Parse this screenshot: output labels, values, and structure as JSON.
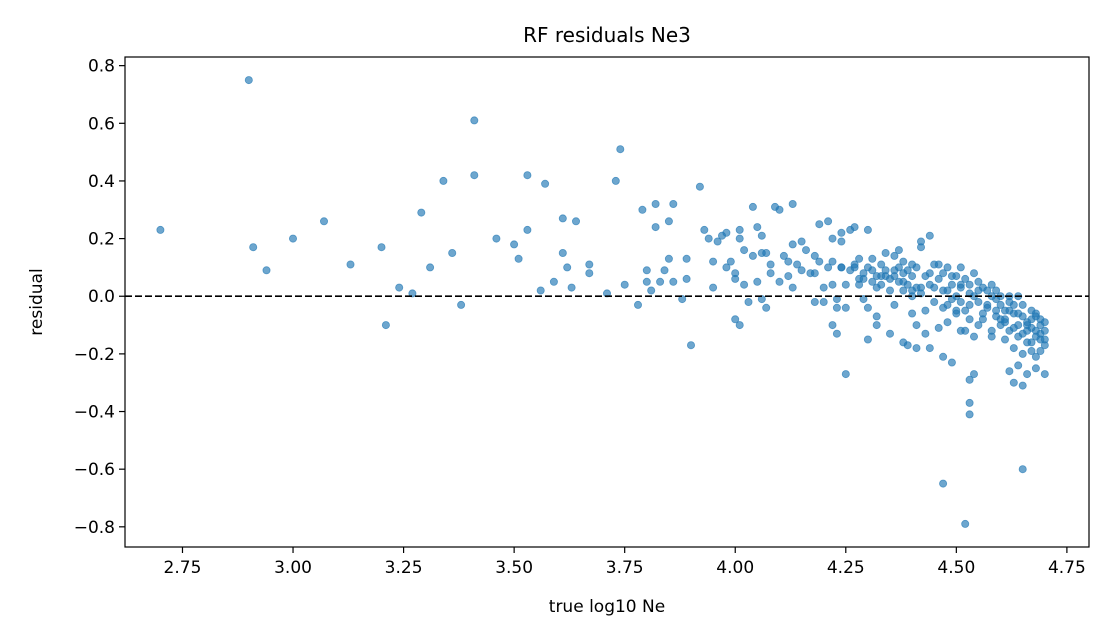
{
  "chart_data": {
    "type": "scatter",
    "title": "RF residuals Ne3",
    "xlabel": "true log10 Ne",
    "ylabel": "residual",
    "xlim": [
      2.62,
      4.8
    ],
    "ylim": [
      -0.87,
      0.83
    ],
    "xticks": [
      "2.75",
      "3.00",
      "3.25",
      "3.50",
      "3.75",
      "4.00",
      "4.25",
      "4.50",
      "4.75"
    ],
    "yticks": [
      "−0.8",
      "−0.6",
      "−0.4",
      "−0.2",
      "0.0",
      "0.2",
      "0.4",
      "0.6",
      "0.8"
    ],
    "reference_line": {
      "y": 0.0,
      "style": "dashed",
      "color": "#000000"
    },
    "grid": false,
    "point_color": "#1f77b4",
    "point_alpha": 0.65,
    "series": [
      {
        "points": [
          [
            2.7,
            0.23
          ],
          [
            2.9,
            0.75
          ],
          [
            2.91,
            0.17
          ],
          [
            2.94,
            0.09
          ],
          [
            3.0,
            0.2
          ],
          [
            3.07,
            0.26
          ],
          [
            3.13,
            0.11
          ],
          [
            3.2,
            0.17
          ],
          [
            3.21,
            -0.1
          ],
          [
            3.24,
            0.03
          ],
          [
            3.27,
            0.01
          ],
          [
            3.29,
            0.29
          ],
          [
            3.31,
            0.1
          ],
          [
            3.34,
            0.4
          ],
          [
            3.36,
            0.15
          ],
          [
            3.38,
            -0.03
          ],
          [
            3.41,
            0.42
          ],
          [
            3.41,
            0.61
          ],
          [
            3.46,
            0.2
          ],
          [
            3.5,
            0.18
          ],
          [
            3.51,
            0.13
          ],
          [
            3.53,
            0.23
          ],
          [
            3.53,
            0.42
          ],
          [
            3.56,
            0.02
          ],
          [
            3.57,
            0.39
          ],
          [
            3.59,
            0.05
          ],
          [
            3.61,
            0.15
          ],
          [
            3.61,
            0.27
          ],
          [
            3.62,
            0.1
          ],
          [
            3.63,
            0.03
          ],
          [
            3.64,
            0.26
          ],
          [
            3.67,
            0.11
          ],
          [
            3.67,
            0.08
          ],
          [
            3.71,
            0.01
          ],
          [
            3.73,
            0.4
          ],
          [
            3.74,
            0.51
          ],
          [
            3.75,
            0.04
          ],
          [
            3.78,
            -0.03
          ],
          [
            3.79,
            0.3
          ],
          [
            3.8,
            0.05
          ],
          [
            3.8,
            0.09
          ],
          [
            3.81,
            0.02
          ],
          [
            3.82,
            0.24
          ],
          [
            3.82,
            0.32
          ],
          [
            3.83,
            0.05
          ],
          [
            3.84,
            0.09
          ],
          [
            3.85,
            0.26
          ],
          [
            3.85,
            0.13
          ],
          [
            3.86,
            0.32
          ],
          [
            3.86,
            0.05
          ],
          [
            3.88,
            -0.01
          ],
          [
            3.89,
            0.13
          ],
          [
            3.89,
            0.06
          ],
          [
            3.9,
            -0.17
          ],
          [
            3.92,
            0.38
          ],
          [
            3.93,
            0.23
          ],
          [
            3.94,
            0.2
          ],
          [
            3.95,
            0.12
          ],
          [
            3.95,
            0.03
          ],
          [
            3.96,
            0.19
          ],
          [
            3.97,
            0.21
          ],
          [
            3.98,
            0.22
          ],
          [
            3.98,
            0.1
          ],
          [
            3.99,
            0.12
          ],
          [
            4.0,
            0.06
          ],
          [
            4.0,
            0.08
          ],
          [
            4.0,
            -0.08
          ],
          [
            4.01,
            0.2
          ],
          [
            4.01,
            0.23
          ],
          [
            4.01,
            -0.1
          ],
          [
            4.02,
            0.04
          ],
          [
            4.02,
            0.16
          ],
          [
            4.03,
            -0.02
          ],
          [
            4.04,
            0.14
          ],
          [
            4.04,
            0.31
          ],
          [
            4.05,
            0.05
          ],
          [
            4.05,
            0.24
          ],
          [
            4.06,
            0.15
          ],
          [
            4.06,
            -0.01
          ],
          [
            4.06,
            0.21
          ],
          [
            4.07,
            0.15
          ],
          [
            4.07,
            -0.04
          ],
          [
            4.08,
            0.08
          ],
          [
            4.08,
            0.11
          ],
          [
            4.09,
            0.31
          ],
          [
            4.1,
            0.3
          ],
          [
            4.1,
            0.05
          ],
          [
            4.11,
            0.14
          ],
          [
            4.12,
            0.12
          ],
          [
            4.12,
            0.07
          ],
          [
            4.13,
            0.18
          ],
          [
            4.13,
            0.32
          ],
          [
            4.13,
            0.03
          ],
          [
            4.14,
            0.11
          ],
          [
            4.15,
            0.19
          ],
          [
            4.15,
            0.09
          ],
          [
            4.16,
            0.16
          ],
          [
            4.17,
            0.08
          ],
          [
            4.18,
            0.14
          ],
          [
            4.18,
            -0.02
          ],
          [
            4.18,
            0.08
          ],
          [
            4.19,
            0.12
          ],
          [
            4.19,
            0.25
          ],
          [
            4.2,
            0.03
          ],
          [
            4.2,
            -0.02
          ],
          [
            4.21,
            0.26
          ],
          [
            4.21,
            0.1
          ],
          [
            4.22,
            0.04
          ],
          [
            4.22,
            0.12
          ],
          [
            4.22,
            -0.1
          ],
          [
            4.22,
            0.2
          ],
          [
            4.23,
            -0.01
          ],
          [
            4.23,
            -0.04
          ],
          [
            4.23,
            -0.13
          ],
          [
            4.24,
            0.1
          ],
          [
            4.24,
            0.19
          ],
          [
            4.24,
            0.22
          ],
          [
            4.25,
            0.04
          ],
          [
            4.25,
            -0.04
          ],
          [
            4.25,
            -0.27
          ],
          [
            4.26,
            0.09
          ],
          [
            4.26,
            0.23
          ],
          [
            4.27,
            0.1
          ],
          [
            4.27,
            0.24
          ],
          [
            4.28,
            0.06
          ],
          [
            4.28,
            0.13
          ],
          [
            4.28,
            0.04
          ],
          [
            4.29,
            -0.01
          ],
          [
            4.29,
            0.08
          ],
          [
            4.3,
            0.23
          ],
          [
            4.3,
            -0.04
          ],
          [
            4.3,
            0.1
          ],
          [
            4.3,
            -0.15
          ],
          [
            4.31,
            0.05
          ],
          [
            4.31,
            0.09
          ],
          [
            4.31,
            0.13
          ],
          [
            4.32,
            0.07
          ],
          [
            4.32,
            -0.07
          ],
          [
            4.32,
            -0.1
          ],
          [
            4.33,
            0.11
          ],
          [
            4.33,
            0.04
          ],
          [
            4.33,
            0.07
          ],
          [
            4.34,
            0.15
          ],
          [
            4.34,
            0.09
          ],
          [
            4.35,
            0.02
          ],
          [
            4.35,
            0.06
          ],
          [
            4.35,
            -0.13
          ],
          [
            4.36,
            0.07
          ],
          [
            4.36,
            0.14
          ],
          [
            4.36,
            -0.03
          ],
          [
            4.37,
            0.05
          ],
          [
            4.37,
            0.16
          ],
          [
            4.37,
            0.1
          ],
          [
            4.38,
            -0.16
          ],
          [
            4.38,
            0.02
          ],
          [
            4.38,
            0.08
          ],
          [
            4.38,
            0.12
          ],
          [
            4.39,
            0.04
          ],
          [
            4.39,
            0.09
          ],
          [
            4.39,
            -0.17
          ],
          [
            4.4,
            -0.06
          ],
          [
            4.4,
            0.07
          ],
          [
            4.4,
            0.0
          ],
          [
            4.4,
            0.02
          ],
          [
            4.41,
            0.03
          ],
          [
            4.41,
            0.1
          ],
          [
            4.41,
            -0.1
          ],
          [
            4.41,
            -0.18
          ],
          [
            4.42,
            0.01
          ],
          [
            4.42,
            0.17
          ],
          [
            4.42,
            0.19
          ],
          [
            4.43,
            -0.13
          ],
          [
            4.43,
            -0.05
          ],
          [
            4.43,
            0.07
          ],
          [
            4.44,
            0.08
          ],
          [
            4.44,
            0.21
          ],
          [
            4.44,
            -0.18
          ],
          [
            4.45,
            0.11
          ],
          [
            4.45,
            -0.02
          ],
          [
            4.45,
            0.03
          ],
          [
            4.46,
            0.11
          ],
          [
            4.46,
            -0.11
          ],
          [
            4.47,
            -0.04
          ],
          [
            4.47,
            0.02
          ],
          [
            4.47,
            0.08
          ],
          [
            4.48,
            -0.09
          ],
          [
            4.48,
            0.1
          ],
          [
            4.48,
            -0.03
          ],
          [
            4.49,
            0.04
          ],
          [
            4.49,
            -0.01
          ],
          [
            4.5,
            0.0
          ],
          [
            4.5,
            0.07
          ],
          [
            4.5,
            -0.06
          ],
          [
            4.51,
            -0.02
          ],
          [
            4.51,
            0.03
          ],
          [
            4.51,
            0.1
          ],
          [
            4.52,
            -0.12
          ],
          [
            4.52,
            0.06
          ],
          [
            4.52,
            -0.05
          ],
          [
            4.53,
            -0.08
          ],
          [
            4.53,
            0.01
          ],
          [
            4.53,
            0.04
          ],
          [
            4.54,
            -0.14
          ],
          [
            4.54,
            0.08
          ],
          [
            4.54,
            0.0
          ],
          [
            4.55,
            -0.02
          ],
          [
            4.55,
            0.05
          ],
          [
            4.55,
            -0.1
          ],
          [
            4.56,
            0.03
          ],
          [
            4.56,
            -0.06
          ],
          [
            4.57,
            0.02
          ],
          [
            4.57,
            -0.03
          ],
          [
            4.58,
            0.04
          ],
          [
            4.58,
            -0.12
          ],
          [
            4.58,
            0.0
          ],
          [
            4.59,
            -0.07
          ],
          [
            4.59,
            0.02
          ],
          [
            4.6,
            -0.03
          ],
          [
            4.6,
            -0.1
          ],
          [
            4.6,
            0.0
          ],
          [
            4.61,
            -0.05
          ],
          [
            4.61,
            -0.15
          ],
          [
            4.61,
            -0.08
          ],
          [
            4.62,
            -0.02
          ],
          [
            4.62,
            -0.12
          ],
          [
            4.62,
            0.0
          ],
          [
            4.63,
            -0.06
          ],
          [
            4.63,
            -0.18
          ],
          [
            4.63,
            -0.03
          ],
          [
            4.64,
            -0.1
          ],
          [
            4.64,
            -0.14
          ],
          [
            4.64,
            0.0
          ],
          [
            4.65,
            -0.07
          ],
          [
            4.65,
            -0.2
          ],
          [
            4.65,
            -0.03
          ],
          [
            4.66,
            -0.12
          ],
          [
            4.66,
            -0.16
          ],
          [
            4.66,
            -0.09
          ],
          [
            4.67,
            -0.05
          ],
          [
            4.67,
            -0.19
          ],
          [
            4.67,
            -0.11
          ],
          [
            4.68,
            -0.14
          ],
          [
            4.68,
            -0.07
          ],
          [
            4.68,
            -0.21
          ],
          [
            4.69,
            -0.1
          ],
          [
            4.69,
            -0.15
          ],
          [
            4.69,
            -0.08
          ],
          [
            4.7,
            -0.12
          ],
          [
            4.7,
            -0.17
          ],
          [
            4.7,
            -0.27
          ],
          [
            4.24,
            0.1
          ],
          [
            4.27,
            0.11
          ],
          [
            4.29,
            0.06
          ],
          [
            4.32,
            0.03
          ],
          [
            4.34,
            0.07
          ],
          [
            4.36,
            0.09
          ],
          [
            4.38,
            0.05
          ],
          [
            4.4,
            0.11
          ],
          [
            4.42,
            0.03
          ],
          [
            4.44,
            0.04
          ],
          [
            4.46,
            0.06
          ],
          [
            4.48,
            0.02
          ],
          [
            4.49,
            0.07
          ],
          [
            4.51,
            0.04
          ],
          [
            4.53,
            -0.03
          ],
          [
            4.55,
            0.02
          ],
          [
            4.57,
            -0.04
          ],
          [
            4.59,
            -0.05
          ],
          [
            4.61,
            -0.09
          ],
          [
            4.63,
            -0.11
          ],
          [
            4.65,
            -0.13
          ],
          [
            4.67,
            -0.16
          ],
          [
            4.68,
            -0.12
          ],
          [
            4.69,
            -0.19
          ],
          [
            4.7,
            -0.09
          ],
          [
            4.47,
            -0.21
          ],
          [
            4.49,
            -0.23
          ],
          [
            4.5,
            -0.05
          ],
          [
            4.51,
            -0.12
          ],
          [
            4.53,
            -0.29
          ],
          [
            4.53,
            -0.37
          ],
          [
            4.53,
            -0.41
          ],
          [
            4.54,
            -0.27
          ],
          [
            4.58,
            -0.14
          ],
          [
            4.62,
            -0.26
          ],
          [
            4.63,
            -0.3
          ],
          [
            4.64,
            -0.24
          ],
          [
            4.65,
            -0.31
          ],
          [
            4.66,
            -0.27
          ],
          [
            4.68,
            -0.25
          ],
          [
            4.65,
            -0.6
          ],
          [
            4.47,
            -0.65
          ],
          [
            4.52,
            -0.79
          ],
          [
            4.56,
            -0.08
          ],
          [
            4.59,
            -0.01
          ],
          [
            4.6,
            -0.08
          ],
          [
            4.62,
            -0.05
          ],
          [
            4.64,
            -0.06
          ],
          [
            4.66,
            -0.1
          ],
          [
            4.67,
            -0.08
          ],
          [
            4.68,
            -0.06
          ],
          [
            4.69,
            -0.13
          ],
          [
            4.7,
            -0.15
          ]
        ]
      }
    ]
  }
}
